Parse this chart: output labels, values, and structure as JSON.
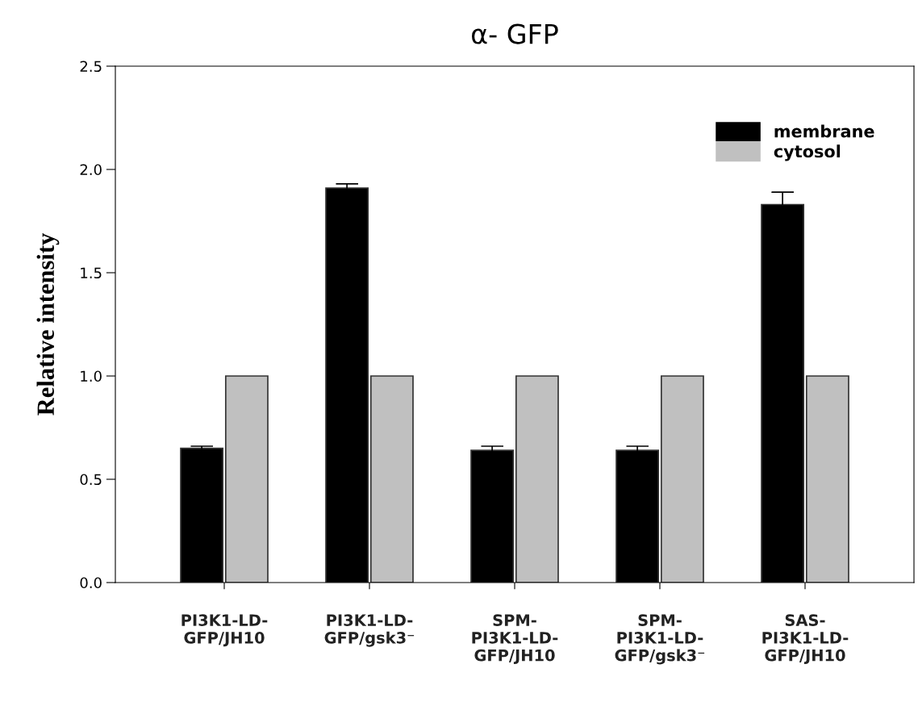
{
  "chart_data": {
    "type": "bar",
    "title": "α- GFP",
    "ylabel": "Relative intensity",
    "categories": [
      "PI3K1-LD-\nGFP/JH10",
      "PI3K1-LD-\nGFP/gsk3⁻",
      "SPM-\nPI3K1-LD-\nGFP/JH10",
      "SPM-\nPI3K1-LD-\nGFP/gsk3⁻",
      "SAS-\nPI3K1-LD-\nGFP/JH10"
    ],
    "series": [
      {
        "name": "membrane",
        "color": "#000000",
        "values": [
          0.65,
          1.91,
          0.64,
          0.64,
          1.83
        ],
        "errors": [
          [
            0.65,
            0.66
          ],
          [
            1.91,
            1.93
          ],
          [
            0.64,
            0.66
          ],
          [
            0.64,
            0.66
          ],
          [
            1.83,
            1.89
          ]
        ]
      },
      {
        "name": "cytosol",
        "color": "#c0c0c0",
        "values": [
          1.0,
          1.0,
          1.0,
          1.0,
          1.0
        ]
      }
    ],
    "ylim": [
      0,
      2.5
    ],
    "yticks": [
      {
        "value": 0,
        "label": "0.0"
      },
      {
        "value": 0.5,
        "label": "0.5"
      },
      {
        "value": 1.0,
        "label": "1.0"
      },
      {
        "value": 1.5,
        "label": "1.5"
      },
      {
        "value": 2.0,
        "label": "2.0"
      },
      {
        "value": 2.5,
        "label": "2.5"
      }
    ],
    "grid": false,
    "legend": "top right"
  }
}
